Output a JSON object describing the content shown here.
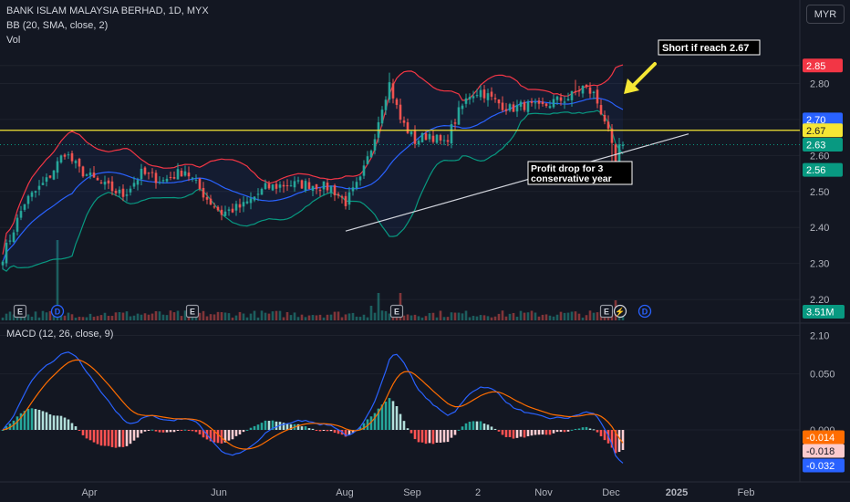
{
  "header": {
    "title": "BANK ISLAM MALAYSIA BERHAD, 1D, MYX",
    "indicator_bb": "BB (20, SMA, close, 2)",
    "indicator_vol": "Vol",
    "indicator_macd": "MACD (12, 26, close, 9)",
    "currency": "MYR"
  },
  "colors": {
    "background": "#131722",
    "up": "#26a69a",
    "down": "#ef5350",
    "bb_upper": "#f23645",
    "bb_lower": "#089981",
    "bb_basis": "#2962ff",
    "macd_line": "#2962ff",
    "signal_line": "#ff6d00",
    "horizontal_level": "#f5e634",
    "trendline": "#d1d4dc",
    "arrow": "#f5e634"
  },
  "chart_data": [
    {
      "type": "candlestick",
      "title": "BANK ISLAM MALAYSIA BERHAD, 1D, MYX",
      "currency": "MYR",
      "ylim": [
        2.08,
        2.9
      ],
      "y_ticks": [
        "2.85",
        "2.80",
        "2.70",
        "2.67",
        "2.63",
        "2.60",
        "2.56",
        "2.50",
        "2.40",
        "2.30",
        "2.20",
        "2.10"
      ],
      "x_ticks": [
        "Apr",
        "Jun",
        "Aug",
        "Sep",
        "2",
        "Nov",
        "Dec",
        "2025",
        "Feb"
      ],
      "price_labels": [
        {
          "text": "2.85",
          "value": 2.85,
          "role": "bb_upper",
          "color": "#f23645"
        },
        {
          "text": "2.70",
          "value": 2.7,
          "role": "bb_basis",
          "color": "#2962ff"
        },
        {
          "text": "2.67",
          "value": 2.67,
          "role": "horizontal_level",
          "color": "#f5e634"
        },
        {
          "text": "2.63",
          "value": 2.63,
          "role": "last_price",
          "color": "#089981"
        },
        {
          "text": "2.56",
          "value": 2.56,
          "role": "bb_lower",
          "color": "#089981"
        }
      ],
      "horizontal_level": 2.67,
      "close_anchors": [
        [
          0,
          2.32
        ],
        [
          6,
          2.47
        ],
        [
          12,
          2.53
        ],
        [
          17,
          2.61
        ],
        [
          21,
          2.56
        ],
        [
          27,
          2.52
        ],
        [
          33,
          2.49
        ],
        [
          38,
          2.55
        ],
        [
          44,
          2.53
        ],
        [
          50,
          2.56
        ],
        [
          56,
          2.48
        ],
        [
          60,
          2.44
        ],
        [
          66,
          2.46
        ],
        [
          72,
          2.51
        ],
        [
          78,
          2.52
        ],
        [
          84,
          2.52
        ],
        [
          90,
          2.51
        ],
        [
          94,
          2.47
        ],
        [
          98,
          2.53
        ],
        [
          101,
          2.62
        ],
        [
          104,
          2.74
        ],
        [
          106,
          2.8
        ],
        [
          109,
          2.7
        ],
        [
          113,
          2.64
        ],
        [
          117,
          2.66
        ],
        [
          121,
          2.63
        ],
        [
          125,
          2.72
        ],
        [
          128,
          2.77
        ],
        [
          131,
          2.78
        ],
        [
          135,
          2.75
        ],
        [
          139,
          2.73
        ],
        [
          143,
          2.74
        ],
        [
          147,
          2.73
        ],
        [
          151,
          2.75
        ],
        [
          155,
          2.76
        ],
        [
          159,
          2.79
        ],
        [
          162,
          2.77
        ],
        [
          165,
          2.7
        ],
        [
          167,
          2.62
        ],
        [
          168,
          2.58
        ],
        [
          169,
          2.62
        ],
        [
          170,
          2.63
        ]
      ],
      "trendline": {
        "from": [
          94,
          2.39
        ],
        "to": [
          188,
          2.66
        ]
      },
      "annotations": [
        {
          "text": "Short if reach 2.67"
        },
        {
          "text_lines": [
            "Profit drop for 3",
            "conservative year"
          ]
        }
      ]
    },
    {
      "type": "bar",
      "name": "Vol",
      "last_label": "3.51M",
      "event_markers": [
        {
          "symbol": "E"
        },
        {
          "symbol": "D"
        },
        {
          "symbol": "E"
        },
        {
          "symbol": "E"
        },
        {
          "symbol": "E"
        },
        {
          "symbol": "⚡"
        },
        {
          "symbol": "D"
        }
      ]
    },
    {
      "type": "line",
      "title": "MACD (12, 26, close, 9)",
      "y_ticks": [
        "0.050",
        "0.000"
      ],
      "value_labels": [
        {
          "text": "0.000",
          "value": 0.0
        },
        {
          "text": "-0.014",
          "value": -0.014,
          "color": "#ff6d00"
        },
        {
          "text": "-0.018",
          "value": -0.018,
          "color": "#fccbcd"
        },
        {
          "text": "-0.032",
          "value": -0.032,
          "color": "#2962ff"
        }
      ]
    }
  ]
}
